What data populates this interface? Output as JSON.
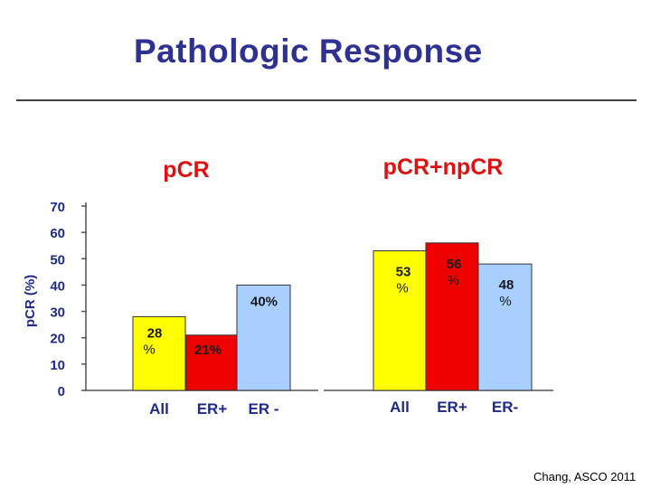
{
  "title": "Pathologic Response",
  "credit": "Chang, ASCO 2011",
  "colors": {
    "title": "#2e3192",
    "group_label": "#e01010",
    "axis_text": "#1f2a8a",
    "yellow": "#ffff00",
    "red": "#ee0000",
    "blue": "#a8cfff"
  },
  "chart_data": {
    "type": "bar",
    "ylabel": "pCR (%)",
    "ylim": [
      0,
      70
    ],
    "yticks": [
      0,
      10,
      20,
      30,
      40,
      50,
      60,
      70
    ],
    "groups": [
      {
        "name": "p​CR",
        "label": "pCR",
        "bars": [
          {
            "category": "All",
            "value": 28,
            "label_line1": "28",
            "label_line2": "%",
            "color": "yellow"
          },
          {
            "category": "ER+",
            "value": 21,
            "label_line1": "21%",
            "label_line2": "",
            "color": "red"
          },
          {
            "category": "ER -",
            "value": 40,
            "label_line1": "40%",
            "label_line2": "",
            "color": "blue"
          }
        ]
      },
      {
        "name": "pCR+npCR",
        "label": "pCR+npCR",
        "bars": [
          {
            "category": "All",
            "value": 53,
            "label_line1": "53",
            "label_line2": "%",
            "color": "yellow"
          },
          {
            "category": "ER+",
            "value": 56,
            "label_line1": "56",
            "label_line2": "%",
            "color": "red"
          },
          {
            "category": "ER-",
            "value": 48,
            "label_line1": "48",
            "label_line2": "%",
            "color": "blue"
          }
        ]
      }
    ]
  }
}
